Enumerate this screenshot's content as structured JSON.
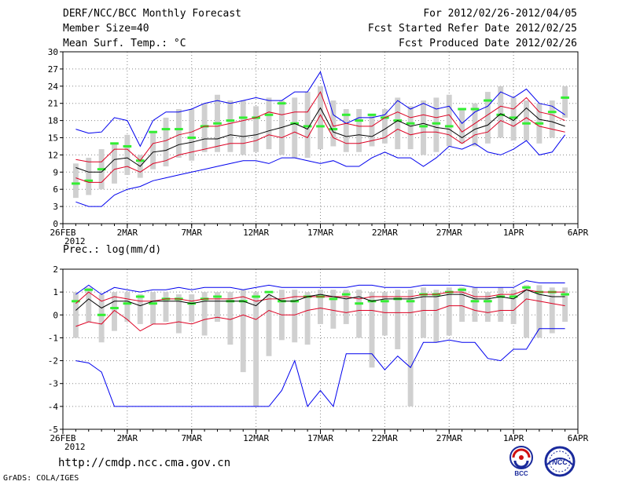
{
  "header": {
    "title": "DERF/NCC/BCC Monthly Forecast",
    "member_size": "Member Size=40",
    "variable": "Mean Surf. Temp.: °C",
    "period": "For 2012/02/26-2012/04/05",
    "started": "Fcst Started Refer Date 2012/02/25",
    "produced": "Fcst Produced Date 2012/02/26"
  },
  "footer": {
    "url": "http://cmdp.ncc.cma.gov.cn",
    "grads": "GrADS: COLA/IGES",
    "logo_left_text": "BCC",
    "logo_right_text": "NCC"
  },
  "colors": {
    "max_min": "#0000ee",
    "mean": "#000000",
    "quartile": "#dd0022",
    "bar": "#d0d0d0",
    "median_tick": "#33ee33",
    "grid": "#888888"
  },
  "chart_data": [
    {
      "type": "line",
      "title": "Mean Surf. Temp.: °C",
      "ylim": [
        0,
        30
      ],
      "yticks": [
        0,
        3,
        6,
        9,
        12,
        15,
        18,
        21,
        24,
        27,
        30
      ],
      "xlim": [
        0,
        40
      ],
      "xtick_positions": [
        0,
        5,
        10,
        15,
        20,
        25,
        30,
        35,
        40
      ],
      "xtick_labels": [
        "26FEB",
        "2MAR",
        "7MAR",
        "12MAR",
        "17MAR",
        "22MAR",
        "27MAR",
        "1APR",
        "6APR"
      ],
      "xtick_sublabel": "2012",
      "x": [
        1,
        2,
        3,
        4,
        5,
        6,
        7,
        8,
        9,
        10,
        11,
        12,
        13,
        14,
        15,
        16,
        17,
        18,
        19,
        20,
        21,
        22,
        23,
        24,
        25,
        26,
        27,
        28,
        29,
        30,
        31,
        32,
        33,
        34,
        35,
        36,
        37,
        38,
        39
      ],
      "bars_low": [
        4.5,
        5.0,
        6.0,
        7.0,
        8.5,
        8.0,
        9.5,
        10.0,
        11.5,
        11.0,
        12.5,
        12.5,
        12.5,
        12.0,
        12.5,
        13.0,
        12.0,
        11.5,
        11.5,
        13.0,
        13.5,
        12.5,
        12.5,
        13.5,
        14.0,
        13.0,
        13.0,
        12.0,
        12.5,
        13.5,
        14.0,
        13.5,
        14.0,
        15.0,
        14.5,
        14.5,
        14.0,
        15.0,
        18.5
      ],
      "bars_high": [
        10.5,
        11.5,
        13.0,
        14.0,
        15.5,
        12.0,
        16.0,
        18.5,
        20.0,
        20.0,
        21.0,
        22.5,
        21.5,
        21.5,
        20.5,
        22.0,
        21.5,
        22.0,
        23.0,
        24.0,
        21.5,
        20.0,
        20.0,
        19.0,
        20.0,
        22.0,
        20.5,
        21.5,
        22.0,
        22.5,
        20.0,
        21.0,
        23.0,
        24.0,
        22.0,
        21.5,
        21.0,
        21.5,
        24.0
      ],
      "median": [
        7.0,
        7.5,
        9.5,
        14.0,
        13.5,
        11.0,
        16.0,
        16.5,
        16.5,
        15.0,
        17.0,
        17.5,
        18.0,
        18.5,
        18.5,
        19.0,
        21.0,
        17.5,
        17.0,
        17.0,
        16.5,
        19.0,
        18.0,
        19.0,
        18.5,
        18.0,
        17.5,
        17.0,
        17.5,
        17.0,
        20.0,
        20.0,
        21.5,
        19.0,
        18.5,
        17.5,
        17.5,
        19.5,
        22.0
      ],
      "series": [
        {
          "name": "max",
          "role": "max_min",
          "values": [
            16.5,
            15.8,
            16.0,
            18.5,
            18.0,
            13.5,
            18.0,
            19.5,
            19.5,
            20.0,
            21.0,
            21.5,
            21.0,
            21.5,
            22.0,
            21.5,
            21.5,
            23.0,
            23.0,
            26.5,
            19.0,
            17.5,
            18.5,
            18.5,
            19.0,
            21.5,
            20.0,
            21.0,
            20.0,
            20.5,
            17.5,
            19.5,
            20.5,
            23.0,
            22.0,
            23.5,
            21.0,
            20.5,
            19.0
          ]
        },
        {
          "name": "upper",
          "role": "quartile",
          "values": [
            11.2,
            10.8,
            10.8,
            13.0,
            13.0,
            11.0,
            14.0,
            14.5,
            15.5,
            16.0,
            17.0,
            17.0,
            17.5,
            18.0,
            18.5,
            19.5,
            19.0,
            19.5,
            19.5,
            23.0,
            17.0,
            17.5,
            17.0,
            17.0,
            18.5,
            19.5,
            18.5,
            19.0,
            18.5,
            19.0,
            16.0,
            17.5,
            19.0,
            20.5,
            20.0,
            22.0,
            19.5,
            19.0,
            18.0
          ]
        },
        {
          "name": "mean",
          "role": "mean",
          "values": [
            9.8,
            9.0,
            9.0,
            11.2,
            11.5,
            10.0,
            12.5,
            12.8,
            13.8,
            14.2,
            14.8,
            14.8,
            15.5,
            15.2,
            15.5,
            16.2,
            16.8,
            17.5,
            16.5,
            20.2,
            16.0,
            15.2,
            15.5,
            15.2,
            16.5,
            18.0,
            17.0,
            17.5,
            16.8,
            16.5,
            15.0,
            16.5,
            17.2,
            19.2,
            18.0,
            20.2,
            18.2,
            17.8,
            17.0
          ]
        },
        {
          "name": "lower",
          "role": "quartile",
          "values": [
            8.0,
            7.2,
            7.2,
            9.5,
            10.0,
            9.0,
            10.5,
            11.0,
            12.0,
            12.5,
            13.0,
            13.5,
            14.0,
            14.0,
            14.5,
            15.5,
            15.0,
            16.0,
            15.0,
            19.0,
            15.0,
            14.0,
            14.0,
            14.5,
            15.0,
            16.5,
            15.5,
            16.0,
            16.0,
            15.5,
            14.0,
            15.5,
            16.0,
            18.0,
            17.0,
            18.5,
            17.0,
            16.5,
            16.0
          ]
        },
        {
          "name": "min",
          "role": "max_min",
          "values": [
            3.8,
            3.0,
            3.0,
            5.0,
            6.0,
            6.5,
            7.5,
            8.0,
            8.5,
            9.0,
            9.5,
            10.0,
            10.5,
            11.0,
            11.0,
            10.5,
            11.5,
            11.5,
            11.0,
            10.5,
            11.0,
            10.0,
            10.0,
            11.5,
            12.5,
            11.5,
            11.5,
            10.0,
            11.5,
            13.5,
            13.0,
            14.0,
            12.5,
            12.0,
            13.0,
            14.5,
            12.0,
            12.5,
            15.5
          ]
        }
      ]
    },
    {
      "type": "line",
      "title": "Prec.: log(mm/d)",
      "ylim": [
        -5,
        2
      ],
      "yticks": [
        -5,
        -4,
        -3,
        -2,
        -1,
        0,
        1,
        2
      ],
      "xlim": [
        0,
        40
      ],
      "xtick_positions": [
        0,
        5,
        10,
        15,
        20,
        25,
        30,
        35,
        40
      ],
      "xtick_labels": [
        "26FEB",
        "2MAR",
        "7MAR",
        "12MAR",
        "17MAR",
        "22MAR",
        "27MAR",
        "1APR",
        "6APR"
      ],
      "xtick_sublabel": "2012",
      "x": [
        1,
        2,
        3,
        4,
        5,
        6,
        7,
        8,
        9,
        10,
        11,
        12,
        13,
        14,
        15,
        16,
        17,
        18,
        19,
        20,
        21,
        22,
        23,
        24,
        25,
        26,
        27,
        28,
        29,
        30,
        31,
        32,
        33,
        34,
        35,
        36,
        37,
        38,
        39
      ],
      "bars_low": [
        -1.0,
        -0.3,
        -1.2,
        -0.7,
        -0.3,
        -0.4,
        -0.4,
        -0.3,
        -0.8,
        -0.3,
        -0.9,
        -0.3,
        -1.3,
        -2.5,
        -4.0,
        -1.8,
        -1.1,
        -1.2,
        -1.3,
        -0.4,
        -0.6,
        -0.4,
        -1.0,
        -2.3,
        -0.9,
        -1.5,
        -4.0,
        -1.0,
        -1.2,
        -0.9,
        -0.3,
        -0.3,
        -0.3,
        -0.3,
        -0.4,
        -1.0,
        -1.0,
        -0.8,
        -0.3
      ],
      "bars_high": [
        1.0,
        1.2,
        0.9,
        1.0,
        1.0,
        0.9,
        1.0,
        1.0,
        0.9,
        0.9,
        1.0,
        1.0,
        1.0,
        1.1,
        1.0,
        0.9,
        1.1,
        1.1,
        1.0,
        1.1,
        1.1,
        1.1,
        1.1,
        1.0,
        1.0,
        1.1,
        1.1,
        1.2,
        1.1,
        1.2,
        1.2,
        1.2,
        1.0,
        1.2,
        1.1,
        1.3,
        1.3,
        1.2,
        1.2
      ],
      "median": [
        0.6,
        1.1,
        0.0,
        0.3,
        0.5,
        0.8,
        0.5,
        0.7,
        0.7,
        0.5,
        0.7,
        0.8,
        0.6,
        0.6,
        0.8,
        1.0,
        0.6,
        0.6,
        0.8,
        0.8,
        0.7,
        0.9,
        0.5,
        0.6,
        0.6,
        0.7,
        0.6,
        0.9,
        0.9,
        1.0,
        1.1,
        0.6,
        0.6,
        0.8,
        0.8,
        1.2,
        1.0,
        1.0,
        0.9
      ],
      "series": [
        {
          "name": "max",
          "role": "max_min",
          "values": [
            0.9,
            1.3,
            0.9,
            1.2,
            1.1,
            1.0,
            1.1,
            1.1,
            1.2,
            1.1,
            1.2,
            1.2,
            1.2,
            1.1,
            1.2,
            1.3,
            1.2,
            1.2,
            1.2,
            1.2,
            1.2,
            1.2,
            1.3,
            1.3,
            1.2,
            1.2,
            1.2,
            1.3,
            1.3,
            1.3,
            1.3,
            1.2,
            1.2,
            1.2,
            1.2,
            1.5,
            1.4,
            1.4,
            1.4
          ]
        },
        {
          "name": "upper",
          "role": "quartile",
          "values": [
            0.5,
            1.0,
            0.6,
            0.8,
            0.7,
            0.6,
            0.6,
            0.7,
            0.7,
            0.6,
            0.7,
            0.7,
            0.7,
            0.8,
            0.6,
            0.7,
            0.7,
            0.8,
            0.8,
            0.8,
            0.8,
            0.8,
            0.7,
            0.8,
            0.8,
            0.8,
            0.8,
            0.9,
            0.9,
            1.0,
            1.0,
            0.8,
            0.8,
            0.9,
            0.9,
            1.1,
            1.0,
            1.0,
            1.0
          ]
        },
        {
          "name": "mean",
          "role": "mean",
          "values": [
            0.2,
            0.7,
            0.3,
            0.6,
            0.6,
            0.4,
            0.6,
            0.6,
            0.6,
            0.5,
            0.6,
            0.6,
            0.6,
            0.6,
            0.4,
            0.9,
            0.6,
            0.6,
            0.8,
            0.9,
            0.8,
            0.7,
            0.8,
            0.6,
            0.7,
            0.7,
            0.7,
            0.8,
            0.8,
            0.9,
            0.9,
            0.7,
            0.7,
            0.8,
            0.7,
            1.1,
            0.9,
            0.8,
            0.8
          ]
        },
        {
          "name": "lower",
          "role": "quartile",
          "values": [
            -0.5,
            -0.3,
            -0.4,
            0.2,
            -0.2,
            -0.7,
            -0.4,
            -0.4,
            -0.3,
            -0.4,
            -0.2,
            -0.1,
            -0.2,
            0.0,
            -0.2,
            0.2,
            0.0,
            0.0,
            0.2,
            0.3,
            0.2,
            0.1,
            0.2,
            0.2,
            0.1,
            0.1,
            0.1,
            0.2,
            0.2,
            0.4,
            0.4,
            0.2,
            0.1,
            0.2,
            0.2,
            0.7,
            0.6,
            0.5,
            0.4
          ]
        },
        {
          "name": "min",
          "role": "max_min",
          "values": [
            -2.0,
            -2.1,
            -2.5,
            -4.0,
            -4.0,
            -4.0,
            -4.0,
            -4.0,
            -4.0,
            -4.0,
            -4.0,
            -4.0,
            -4.0,
            -4.0,
            -4.0,
            -4.0,
            -3.3,
            -2.0,
            -4.0,
            -3.3,
            -4.0,
            -1.7,
            -1.7,
            -1.7,
            -2.4,
            -1.8,
            -2.3,
            -1.2,
            -1.2,
            -1.1,
            -1.2,
            -1.2,
            -1.9,
            -2.0,
            -1.5,
            -1.5,
            -0.6,
            -0.6,
            -0.6
          ]
        }
      ]
    }
  ]
}
